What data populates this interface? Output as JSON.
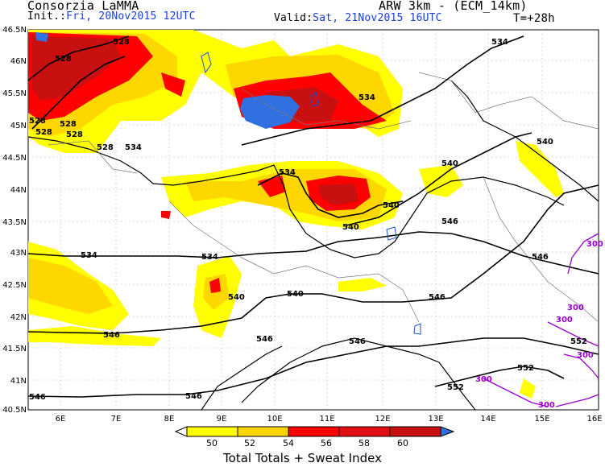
{
  "header": {
    "org": "Consorzia LaMMA",
    "model": "ARW 3km - (ECM_14km)",
    "init_label": "Init.:",
    "init_value": "Fri, 20Nov2015 12UTC",
    "valid_label": "Valid:",
    "valid_value": "Sat, 21Nov2015 16UTC",
    "lead": "T=+28h"
  },
  "map": {
    "lat_ticks": [
      "46.5N",
      "46N",
      "45.5N",
      "45N",
      "44.5N",
      "44N",
      "43.5N",
      "43N",
      "42.5N",
      "42N",
      "41.5N",
      "41N",
      "40.5N"
    ],
    "lon_ticks": [
      "6E",
      "7E",
      "8E",
      "9E",
      "10E",
      "11E",
      "12E",
      "13E",
      "14E",
      "15E",
      "16E"
    ],
    "contour_labels": [
      "528",
      "528",
      "528",
      "528",
      "528",
      "528",
      "528",
      "534",
      "534",
      "534",
      "534",
      "534",
      "540",
      "540",
      "540",
      "540",
      "540",
      "540",
      "546",
      "546",
      "546",
      "546",
      "546",
      "546",
      "546",
      "546",
      "552",
      "552",
      "552",
      "534",
      "300",
      "300",
      "300",
      "300",
      "300",
      "300"
    ]
  },
  "colorbar": {
    "ticks": [
      "50",
      "52",
      "54",
      "56",
      "58",
      "60"
    ],
    "colors": [
      "#ffff00",
      "#ffd700",
      "#ff0000",
      "#e01010",
      "#c81010",
      "#3070e0"
    ],
    "title": "Total Totals + Sweat Index"
  }
}
